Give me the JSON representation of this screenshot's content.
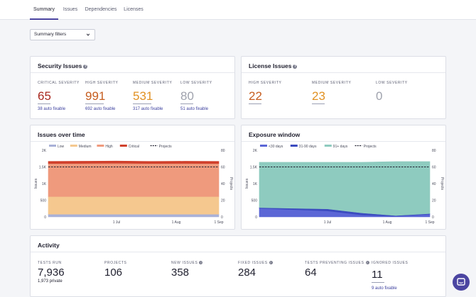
{
  "tabs": [
    {
      "label": "Summary",
      "active": true
    },
    {
      "label": "Issues",
      "active": false
    },
    {
      "label": "Dependencies",
      "active": false
    },
    {
      "label": "Licenses",
      "active": false
    }
  ],
  "filters": {
    "label": "Summary filters",
    "icon": "chevron-down-icon"
  },
  "security": {
    "title": "Security Issues",
    "help_icon": "help-circle-icon",
    "items": [
      {
        "label": "CRITICAL SEVERITY",
        "value": "65",
        "link": "38 auto fixable",
        "color": "#a8271e"
      },
      {
        "label": "HIGH SEVERITY",
        "value": "991",
        "link": "692 auto fixable",
        "color": "#c65d1f"
      },
      {
        "label": "MEDIUM SEVERITY",
        "value": "531",
        "link": "317 auto fixable",
        "color": "#e19122"
      },
      {
        "label": "LOW SEVERITY",
        "value": "80",
        "link": "51 auto fixable",
        "color": "#9fa2ad"
      }
    ]
  },
  "license": {
    "title": "License Issues",
    "help_icon": "help-circle-icon",
    "items": [
      {
        "label": "HIGH SEVERITY",
        "value": "22",
        "color": "#c65d1f"
      },
      {
        "label": "MEDIUM SEVERITY",
        "value": "23",
        "color": "#e19122"
      },
      {
        "label": "LOW SEVERITY",
        "value": "0",
        "color": "#9fa2ad"
      }
    ]
  },
  "chart_data": [
    {
      "type": "area",
      "title": "Issues over time",
      "ylabel": "Issues",
      "y2label": "Projects",
      "ylim": [
        0,
        2000
      ],
      "y_ticks": [
        "2K",
        "1.5K",
        "1K",
        "500",
        "0"
      ],
      "y2lim": [
        0,
        80
      ],
      "y2_ticks": [
        "80",
        "60",
        "40",
        "20",
        "0"
      ],
      "x_ticks": [
        "1 Jul",
        "1 Aug",
        "1 Sep"
      ],
      "stacked": true,
      "series": [
        {
          "name": "Low",
          "color": "#a9b1d8",
          "values": [
            80,
            80,
            80,
            80,
            80,
            80
          ]
        },
        {
          "name": "Medium",
          "color": "#f5c88f",
          "values": [
            531,
            531,
            531,
            531,
            531,
            531
          ]
        },
        {
          "name": "High",
          "color": "#ef9a7d",
          "values": [
            991,
            995,
            1000,
            990,
            995,
            991
          ]
        },
        {
          "name": "Critical",
          "color": "#d0402c",
          "values": [
            65,
            65,
            65,
            65,
            65,
            65
          ]
        }
      ],
      "line_series": {
        "name": "Projects",
        "style": "dashed",
        "color": "#1f1f2e",
        "values": [
          60,
          60,
          60,
          60,
          60,
          60
        ]
      }
    },
    {
      "type": "area",
      "title": "Exposure window",
      "ylabel": "Issues",
      "y2label": "Projects",
      "ylim": [
        0,
        2000
      ],
      "y_ticks": [
        "2K",
        "1.5K",
        "1K",
        "500",
        "0"
      ],
      "y2lim": [
        0,
        80
      ],
      "y2_ticks": [
        "80",
        "60",
        "40",
        "20",
        "0"
      ],
      "x_ticks": [
        "1 Jul",
        "1 Aug",
        "1 Sep"
      ],
      "stacked": true,
      "series": [
        {
          "name": "<30 days",
          "color": "#5b66d6",
          "values": [
            260,
            220,
            180,
            60,
            20,
            80
          ]
        },
        {
          "name": "31-90 days",
          "color": "#3b4bbf",
          "values": [
            20,
            40,
            60,
            60,
            20,
            20
          ]
        },
        {
          "name": "91+ days",
          "color": "#8ecbbf",
          "values": [
            1360,
            1380,
            1400,
            1520,
            1620,
            1560
          ]
        }
      ],
      "line_series": {
        "name": "Projects",
        "style": "dashed",
        "color": "#1f1f2e",
        "values": [
          60,
          60,
          60,
          60,
          60,
          60
        ]
      }
    }
  ],
  "activity": {
    "title": "Activity",
    "items": [
      {
        "label": "TESTS RUN",
        "value": "7,936",
        "sub": "1,973 private",
        "help": false
      },
      {
        "label": "PROJECTS",
        "value": "106",
        "sub": "",
        "help": false
      },
      {
        "label": "NEW ISSUES",
        "value": "358",
        "sub": "",
        "help": true
      },
      {
        "label": "FIXED ISSUES",
        "value": "284",
        "sub": "",
        "help": true
      },
      {
        "label": "TESTS PREVENTING ISSUES",
        "value": "64",
        "sub": "",
        "help": true
      },
      {
        "label": "IGNORED ISSUES",
        "value": "11",
        "sub": "9 auto fixable",
        "help": false
      }
    ]
  },
  "chat": {
    "icon": "chat-icon"
  }
}
